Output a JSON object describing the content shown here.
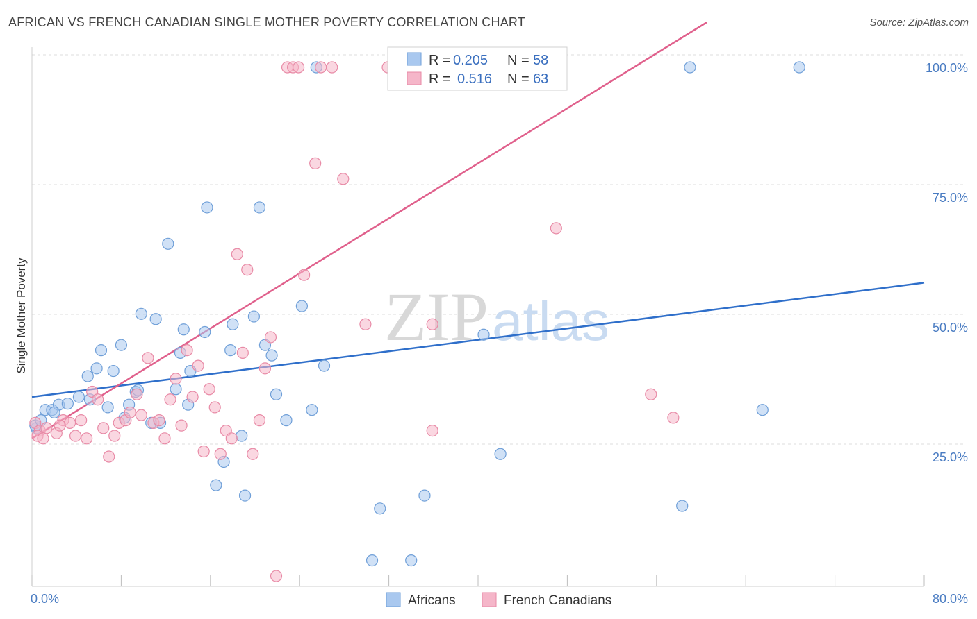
{
  "header": {
    "title": "AFRICAN VS FRENCH CANADIAN SINGLE MOTHER POVERTY CORRELATION CHART",
    "source": "Source: ZipAtlas.com"
  },
  "watermark": {
    "zip": "ZIP",
    "atlas": "atlas"
  },
  "colors": {
    "blue_fill": "#a9c8ef",
    "blue_stroke": "#6f9fd8",
    "blue_line": "#2f6fca",
    "pink_fill": "#f5b6c9",
    "pink_stroke": "#e88aa6",
    "pink_line": "#e0608c"
  },
  "legend": {
    "r_label": "R =",
    "n_label": "N =",
    "rows": [
      {
        "r": "0.205",
        "n": "58"
      },
      {
        "r": "0.516",
        "n": "63"
      }
    ]
  },
  "chart_data": {
    "type": "scatter",
    "ylabel": "Single Mother Poverty",
    "xlim": [
      0,
      80
    ],
    "ylim": [
      0,
      100
    ],
    "x_tick_labels": [
      "0.0%",
      "80.0%"
    ],
    "y_ticks": [
      25,
      50,
      75,
      100
    ],
    "y_tick_labels": [
      "25.0%",
      "50.0%",
      "75.0%",
      "100.0%"
    ],
    "grid": true,
    "legend_position": "top-center",
    "series": [
      {
        "name": "Africans",
        "trend": {
          "x": [
            0,
            80
          ],
          "y": [
            36.5,
            58.5
          ]
        },
        "points": [
          [
            0.4,
            30.5
          ],
          [
            1.2,
            34.0
          ],
          [
            1.8,
            34.0
          ],
          [
            2.4,
            35.0
          ],
          [
            3.2,
            35.2
          ],
          [
            4.2,
            36.5
          ],
          [
            5.2,
            36.0
          ],
          [
            5.0,
            40.5
          ],
          [
            5.8,
            42.0
          ],
          [
            6.2,
            45.5
          ],
          [
            6.8,
            34.5
          ],
          [
            7.3,
            41.5
          ],
          [
            8.0,
            46.5
          ],
          [
            8.3,
            32.5
          ],
          [
            8.7,
            35.0
          ],
          [
            9.3,
            37.5
          ],
          [
            9.5,
            37.8
          ],
          [
            9.8,
            52.5
          ],
          [
            10.7,
            31.5
          ],
          [
            11.1,
            51.5
          ],
          [
            11.5,
            31.5
          ],
          [
            12.2,
            66.0
          ],
          [
            12.9,
            38.0
          ],
          [
            13.3,
            45.0
          ],
          [
            13.6,
            49.5
          ],
          [
            14.0,
            35.0
          ],
          [
            14.2,
            41.5
          ],
          [
            15.5,
            49.0
          ],
          [
            15.7,
            73.0
          ],
          [
            16.5,
            19.5
          ],
          [
            17.2,
            24.0
          ],
          [
            17.8,
            45.5
          ],
          [
            18.0,
            50.5
          ],
          [
            18.8,
            29.0
          ],
          [
            19.1,
            17.5
          ],
          [
            19.9,
            52.0
          ],
          [
            20.4,
            73.0
          ],
          [
            20.9,
            46.5
          ],
          [
            21.5,
            44.5
          ],
          [
            21.9,
            37.0
          ],
          [
            22.8,
            32.0
          ],
          [
            24.2,
            54.0
          ],
          [
            25.1,
            34.0
          ],
          [
            25.5,
            100
          ],
          [
            26.2,
            42.5
          ],
          [
            30.5,
            5.0
          ],
          [
            31.2,
            15.0
          ],
          [
            34.0,
            5.0
          ],
          [
            35.2,
            17.5
          ],
          [
            40.5,
            48.5
          ],
          [
            42.0,
            25.5
          ],
          [
            58.3,
            15.5
          ],
          [
            59.0,
            100
          ],
          [
            65.5,
            34.0
          ],
          [
            68.8,
            100
          ],
          [
            0.3,
            31.0
          ],
          [
            0.8,
            32.0
          ],
          [
            2.0,
            33.5
          ]
        ]
      },
      {
        "name": "French Canadians",
        "trend": {
          "x": [
            0,
            80
          ],
          "y": [
            28.5,
            134.5
          ]
        },
        "points": [
          [
            0.3,
            31.5
          ],
          [
            0.7,
            30.0
          ],
          [
            1.3,
            30.5
          ],
          [
            2.2,
            29.5
          ],
          [
            2.8,
            32.0
          ],
          [
            3.4,
            31.5
          ],
          [
            3.9,
            29.0
          ],
          [
            4.4,
            32.0
          ],
          [
            4.9,
            28.5
          ],
          [
            5.4,
            37.5
          ],
          [
            5.9,
            36.0
          ],
          [
            6.4,
            30.5
          ],
          [
            6.9,
            25.0
          ],
          [
            7.4,
            29.0
          ],
          [
            7.8,
            31.5
          ],
          [
            8.4,
            32.0
          ],
          [
            8.8,
            33.5
          ],
          [
            9.4,
            37.0
          ],
          [
            9.8,
            33.0
          ],
          [
            10.4,
            44.0
          ],
          [
            10.9,
            31.5
          ],
          [
            11.4,
            32.0
          ],
          [
            11.9,
            28.5
          ],
          [
            12.4,
            36.0
          ],
          [
            12.9,
            40.0
          ],
          [
            13.4,
            31.0
          ],
          [
            13.9,
            45.5
          ],
          [
            14.4,
            36.5
          ],
          [
            14.9,
            42.5
          ],
          [
            15.4,
            26.0
          ],
          [
            15.9,
            38.0
          ],
          [
            16.4,
            34.5
          ],
          [
            16.9,
            25.5
          ],
          [
            17.4,
            30.0
          ],
          [
            17.9,
            28.5
          ],
          [
            18.4,
            64.0
          ],
          [
            18.9,
            45.0
          ],
          [
            19.3,
            61.0
          ],
          [
            19.8,
            25.5
          ],
          [
            20.4,
            32.0
          ],
          [
            20.9,
            42.0
          ],
          [
            21.4,
            48.0
          ],
          [
            21.9,
            2.0
          ],
          [
            22.9,
            100
          ],
          [
            23.4,
            100
          ],
          [
            23.9,
            100
          ],
          [
            24.4,
            60.0
          ],
          [
            25.4,
            81.5
          ],
          [
            25.9,
            100
          ],
          [
            26.9,
            100
          ],
          [
            27.9,
            78.5
          ],
          [
            29.9,
            50.5
          ],
          [
            31.9,
            100
          ],
          [
            32.4,
            100
          ],
          [
            35.9,
            50.5
          ],
          [
            35.9,
            30.0
          ],
          [
            37.9,
            100
          ],
          [
            47.0,
            69.0
          ],
          [
            55.5,
            37.0
          ],
          [
            57.5,
            32.5
          ],
          [
            0.5,
            29.0
          ],
          [
            1.0,
            28.5
          ],
          [
            2.5,
            31.0
          ]
        ]
      }
    ]
  },
  "bottom_legend": {
    "items": [
      {
        "label": "Africans"
      },
      {
        "label": "French Canadians"
      }
    ]
  }
}
